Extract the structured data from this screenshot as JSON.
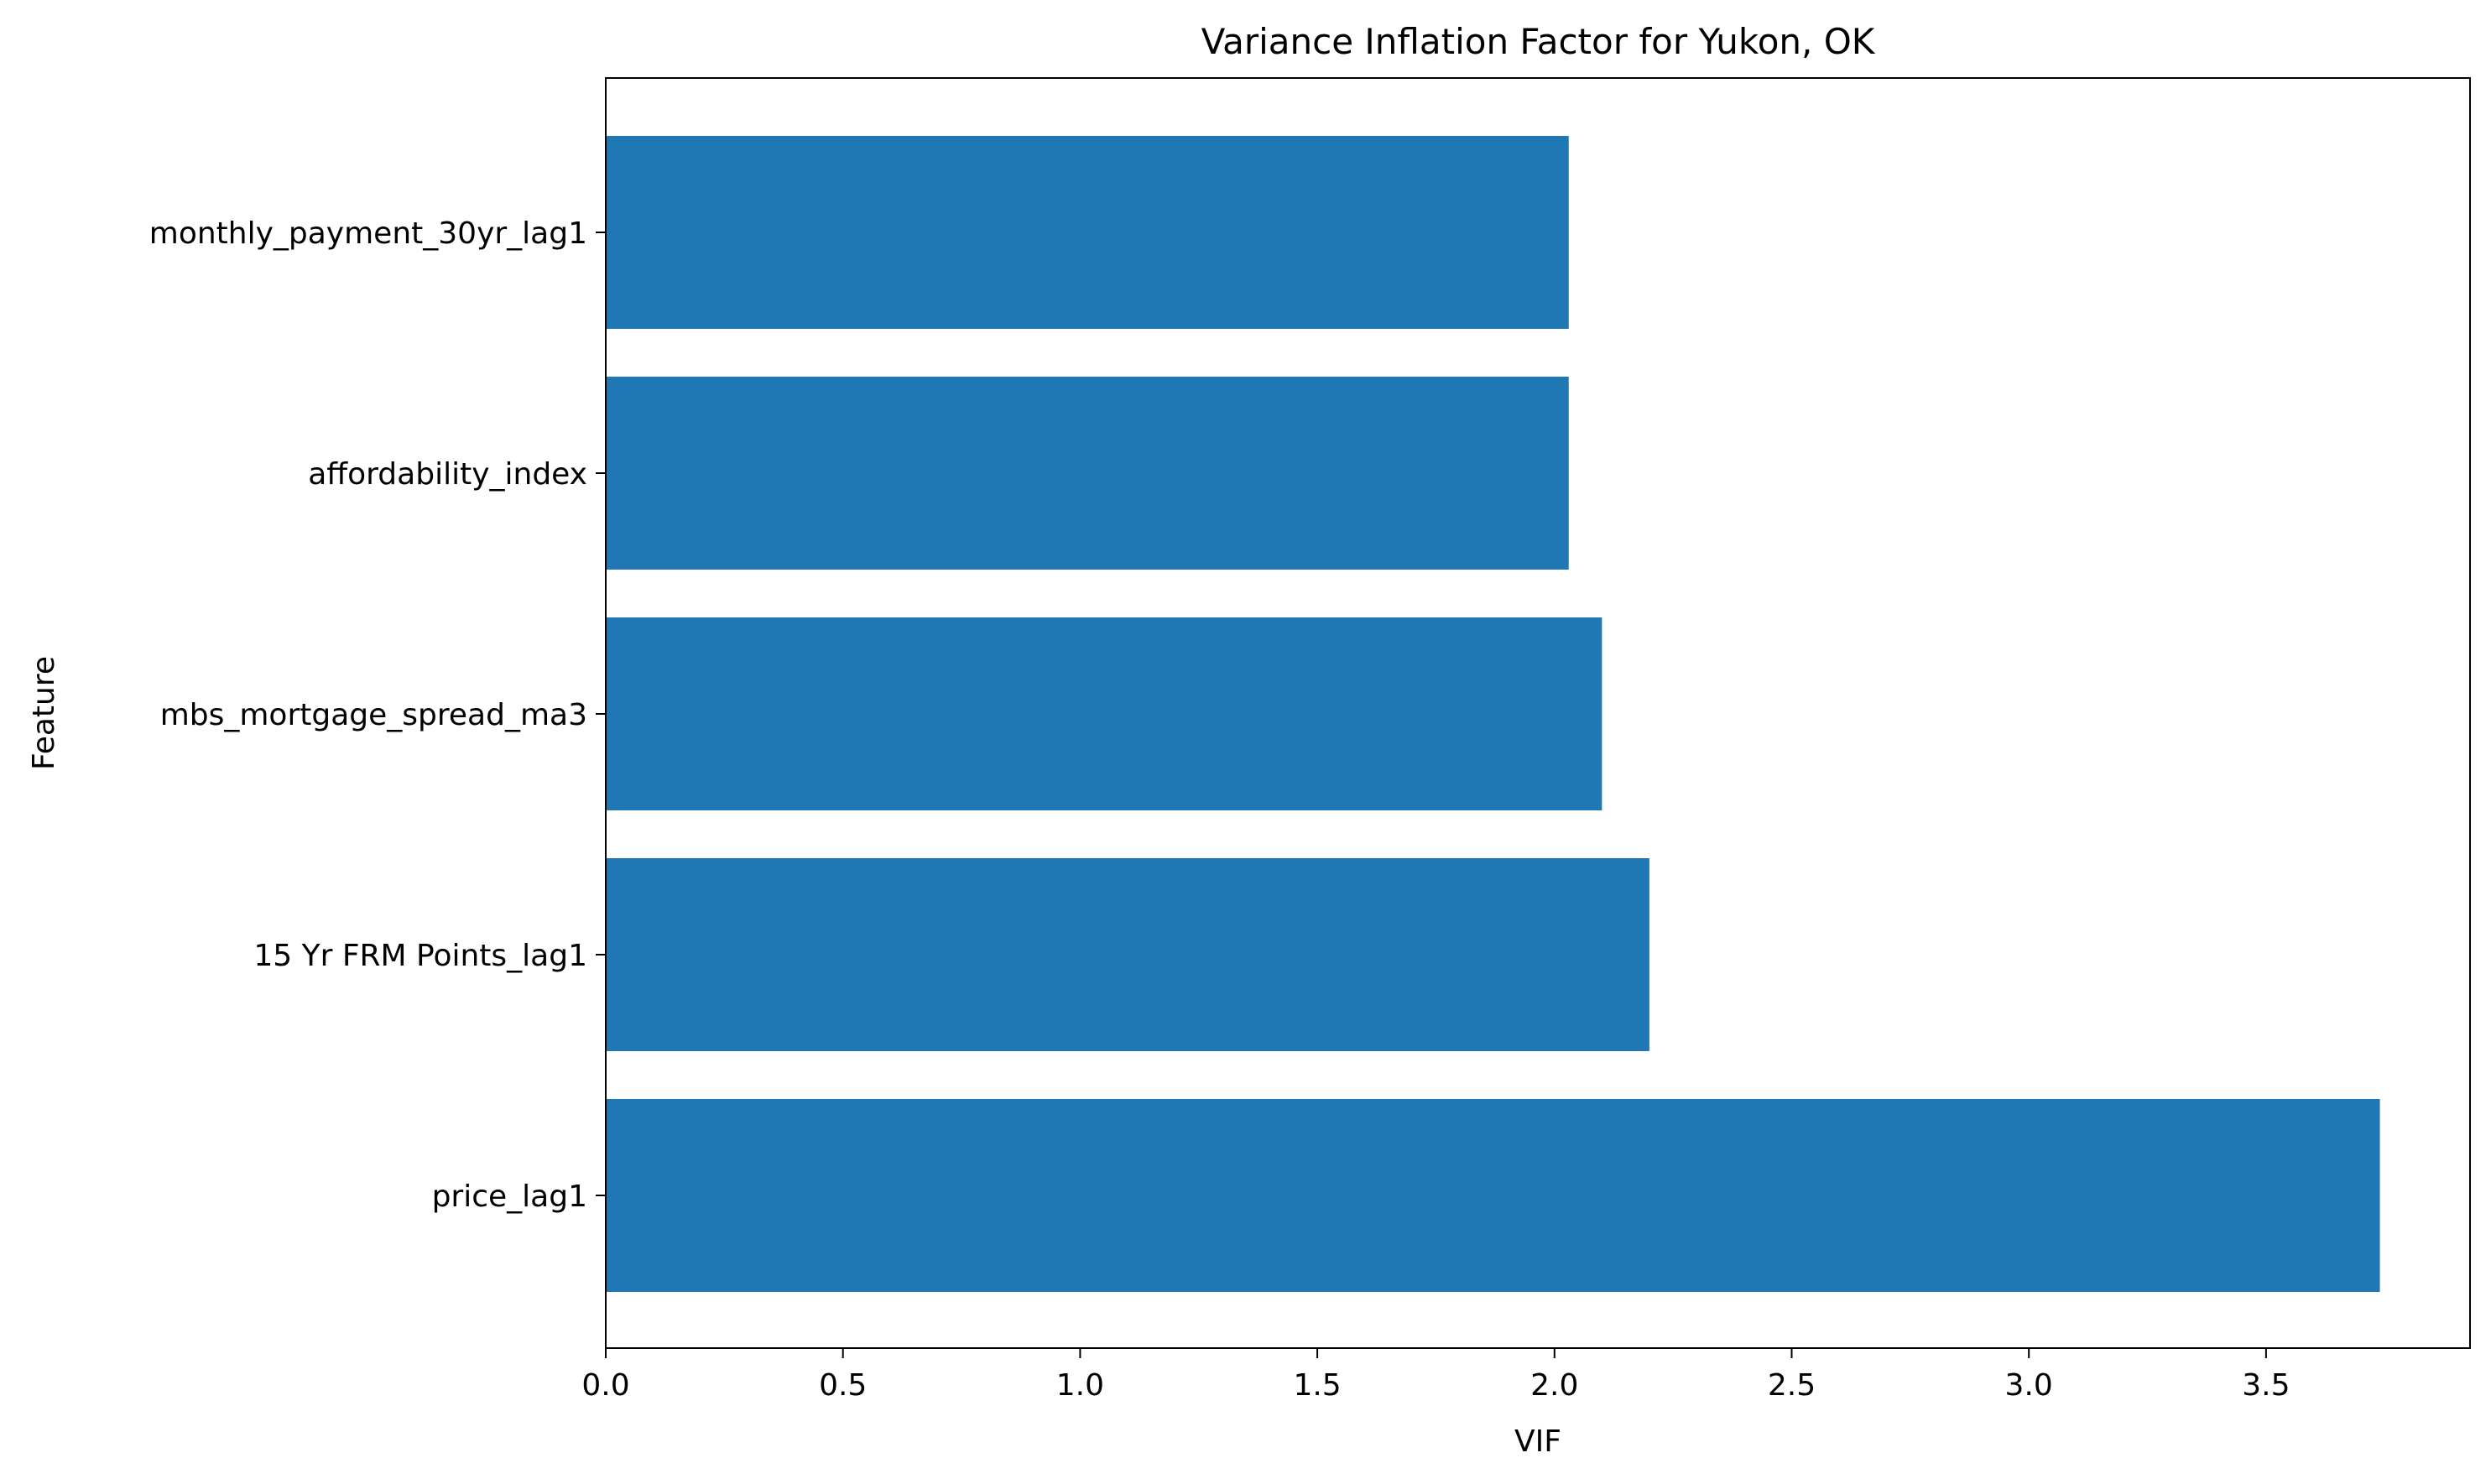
{
  "chart_data": {
    "type": "bar",
    "orientation": "horizontal",
    "title": "Variance Inflation Factor for Yukon, OK",
    "xlabel": "VIF",
    "ylabel": "Feature",
    "categories": [
      "monthly_payment_30yr_lag1",
      "affordability_index",
      "mbs_mortgage_spread_ma3",
      "15 Yr FRM Points_lag1",
      "price_lag1"
    ],
    "values": [
      2.03,
      2.03,
      2.1,
      2.2,
      3.74
    ],
    "xlim": [
      0,
      3.93
    ],
    "xticks": [
      0.0,
      0.5,
      1.0,
      1.5,
      2.0,
      2.5,
      3.0,
      3.5
    ],
    "xtick_labels": [
      "0.0",
      "0.5",
      "1.0",
      "1.5",
      "2.0",
      "2.5",
      "3.0",
      "3.5"
    ],
    "bar_color": "#1f77b4",
    "grid": false,
    "legend": "none"
  }
}
